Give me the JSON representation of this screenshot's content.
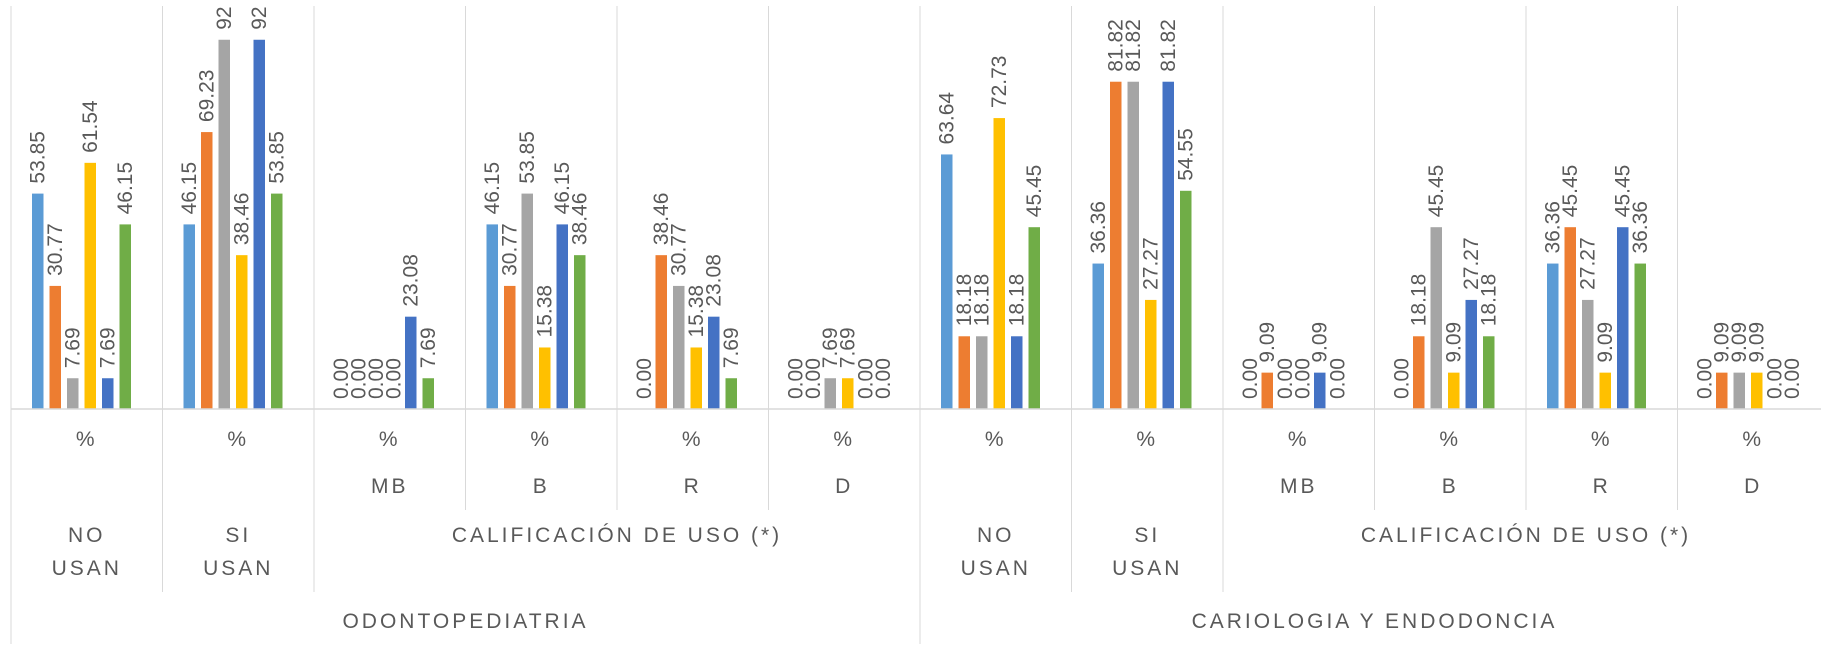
{
  "chart_data": {
    "type": "bar",
    "grid": false,
    "legend": "none",
    "ylim": [
      0,
      100
    ],
    "colors": [
      "#5B9BD5",
      "#ED7D31",
      "#A5A5A5",
      "#FFC000",
      "#4472C4",
      "#70AD47"
    ],
    "groups": [
      {
        "name": "ODONTOPEDIATRIA",
        "subgroups": [
          {
            "name": "NO USAN",
            "categories": [
              {
                "level": "",
                "unit": "%",
                "values": [
                  53.85,
                  30.77,
                  7.69,
                  61.54,
                  7.69,
                  46.15
                ],
                "labels": [
                  "53.85",
                  "30.77",
                  "7.69",
                  "61.54",
                  "7.69",
                  "46.15"
                ]
              }
            ]
          },
          {
            "name": "SI USAN",
            "categories": [
              {
                "level": "",
                "unit": "%",
                "values": [
                  46.15,
                  69.23,
                  92.31,
                  38.46,
                  92.31,
                  53.85
                ],
                "labels": [
                  "46.15",
                  "69.23",
                  "92",
                  "38.46",
                  "92",
                  "53.85"
                ]
              }
            ]
          },
          {
            "name": "CALIFICACIÓN DE USO (*)",
            "categories": [
              {
                "level": "MB",
                "unit": "%",
                "values": [
                  0.0,
                  0.0,
                  0.0,
                  0.0,
                  23.08,
                  7.69
                ],
                "labels": [
                  "0.00",
                  "0.00",
                  "0.00",
                  "0.00",
                  "23.08",
                  "7.69"
                ]
              },
              {
                "level": "B",
                "unit": "%",
                "values": [
                  46.15,
                  30.77,
                  53.85,
                  15.38,
                  46.15,
                  38.46
                ],
                "labels": [
                  "46.15",
                  "30.77",
                  "53.85",
                  "15.38",
                  "46.15",
                  "38.46"
                ]
              },
              {
                "level": "R",
                "unit": "%",
                "values": [
                  0.0,
                  38.46,
                  30.77,
                  15.38,
                  23.08,
                  7.69
                ],
                "labels": [
                  "0.00",
                  "38.46",
                  "30.77",
                  "15.38",
                  "23.08",
                  "7.69"
                ]
              },
              {
                "level": "D",
                "unit": "%",
                "values": [
                  0.0,
                  0.0,
                  7.69,
                  7.69,
                  0.0,
                  0.0
                ],
                "labels": [
                  "0.00",
                  "0.00",
                  "7.69",
                  "7.69",
                  "0.00",
                  "0.00"
                ]
              }
            ]
          }
        ]
      },
      {
        "name": "CARIOLOGIA Y ENDODONCIA",
        "subgroups": [
          {
            "name": "NO USAN",
            "categories": [
              {
                "level": "",
                "unit": "%",
                "values": [
                  63.64,
                  18.18,
                  18.18,
                  72.73,
                  18.18,
                  45.45
                ],
                "labels": [
                  "63.64",
                  "18.18",
                  "18.18",
                  "72.73",
                  "18.18",
                  "45.45"
                ]
              }
            ]
          },
          {
            "name": "SI USAN",
            "categories": [
              {
                "level": "",
                "unit": "%",
                "values": [
                  36.36,
                  81.82,
                  81.82,
                  27.27,
                  81.82,
                  54.55
                ],
                "labels": [
                  "36.36",
                  "81.82",
                  "81.82",
                  "27.27",
                  "81.82",
                  "54.55"
                ]
              }
            ]
          },
          {
            "name": "CALIFICACIÓN DE USO (*)",
            "categories": [
              {
                "level": "MB",
                "unit": "%",
                "values": [
                  0.0,
                  9.09,
                  0.0,
                  0.0,
                  9.09,
                  0.0
                ],
                "labels": [
                  "0.00",
                  "9.09",
                  "0.00",
                  "0.00",
                  "9.09",
                  "0.00"
                ]
              },
              {
                "level": "B",
                "unit": "%",
                "values": [
                  0.0,
                  18.18,
                  45.45,
                  9.09,
                  27.27,
                  18.18
                ],
                "labels": [
                  "0.00",
                  "18.18",
                  "45.45",
                  "9.09",
                  "27.27",
                  "18.18"
                ]
              },
              {
                "level": "R",
                "unit": "%",
                "values": [
                  36.36,
                  45.45,
                  27.27,
                  9.09,
                  45.45,
                  36.36
                ],
                "labels": [
                  "36.36",
                  "45.45",
                  "27.27",
                  "9.09",
                  "45.45",
                  "36.36"
                ]
              },
              {
                "level": "D",
                "unit": "%",
                "values": [
                  0.0,
                  9.09,
                  9.09,
                  9.09,
                  0.0,
                  0.0
                ],
                "labels": [
                  "0.00",
                  "9.09",
                  "9.09",
                  "9.09",
                  "0.00",
                  "0.00"
                ]
              }
            ]
          }
        ]
      }
    ]
  }
}
